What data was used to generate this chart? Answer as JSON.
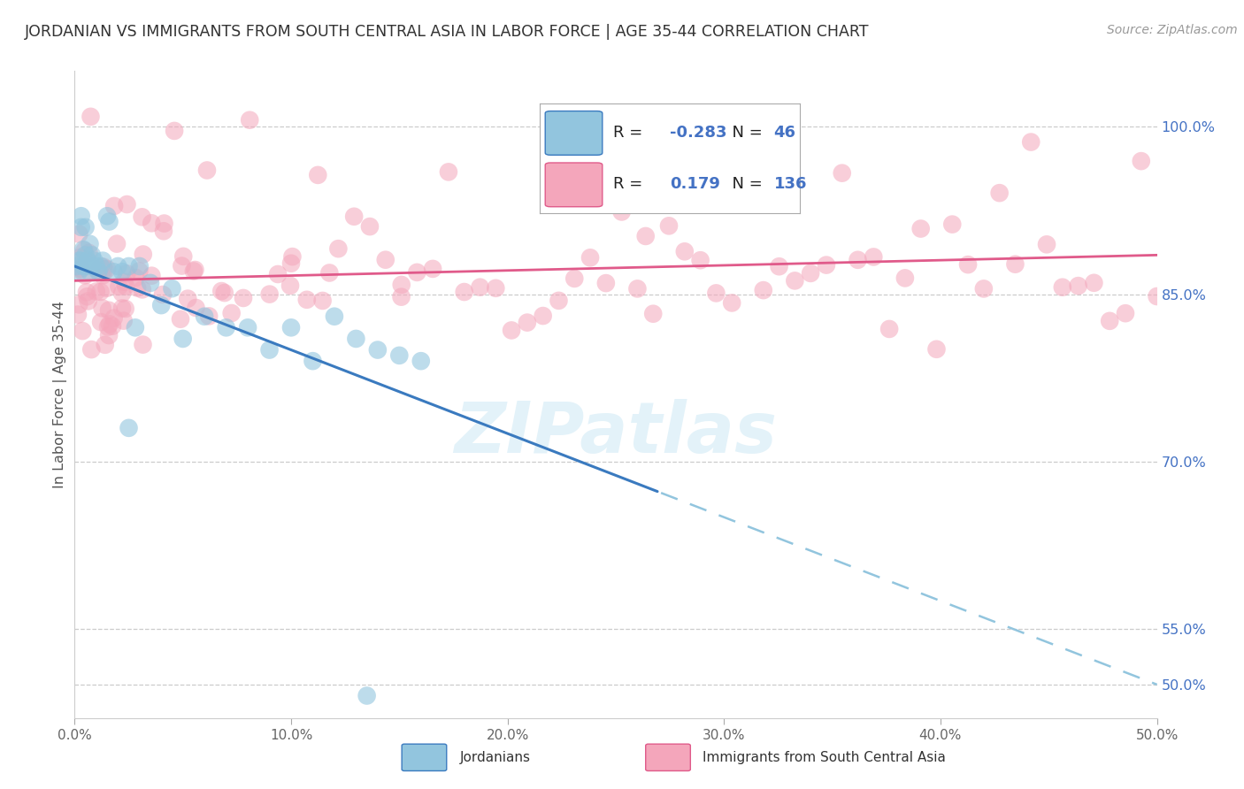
{
  "title": "JORDANIAN VS IMMIGRANTS FROM SOUTH CENTRAL ASIA IN LABOR FORCE | AGE 35-44 CORRELATION CHART",
  "source": "Source: ZipAtlas.com",
  "ylabel": "In Labor Force | Age 35-44",
  "xtick_labels": [
    "0.0%",
    "10.0%",
    "20.0%",
    "30.0%",
    "40.0%",
    "50.0%"
  ],
  "ytick_labels_right": [
    "50.0%",
    "55.0%",
    "70.0%",
    "85.0%",
    "100.0%"
  ],
  "xlim": [
    0.0,
    0.5
  ],
  "ylim": [
    0.47,
    1.05
  ],
  "blue_R": "-0.283",
  "blue_N": "46",
  "pink_R": "0.179",
  "pink_N": "136",
  "blue_scatter_color": "#92c5de",
  "pink_scatter_color": "#f4a6bb",
  "blue_line_color": "#3a7abf",
  "pink_line_color": "#e05a8a",
  "blue_label": "Jordanians",
  "pink_label": "Immigrants from South Central Asia",
  "watermark": "ZIPatlas",
  "title_color": "#333333",
  "right_axis_color": "#4472c4",
  "legend_text_color": "#4472c4",
  "legend_label_color": "#333333",
  "grid_color": "#cccccc",
  "spine_color": "#cccccc"
}
